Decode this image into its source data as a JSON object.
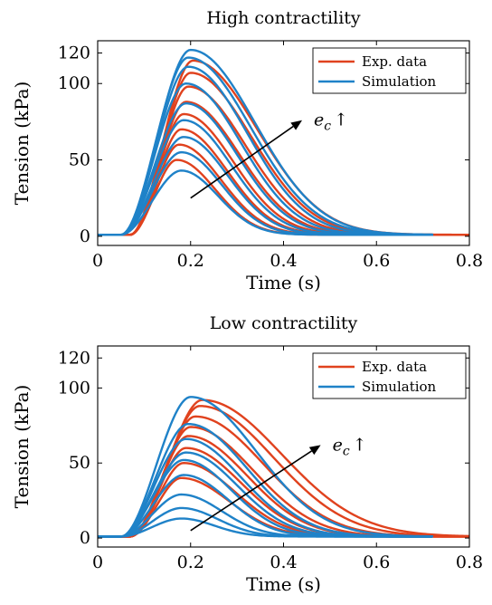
{
  "chart_data": [
    {
      "type": "line",
      "title": "High contractility",
      "xlabel": "Time (s)",
      "ylabel": "Tension (kPa)",
      "xlim": [
        0,
        0.8
      ],
      "ylim": [
        -6,
        128
      ],
      "x_ticks": [
        0,
        0.2,
        0.4,
        0.6,
        0.8
      ],
      "x_tick_labels": [
        "0",
        "0.2",
        "0.4",
        "0.6",
        "0.8"
      ],
      "y_ticks": [
        0,
        50,
        100,
        120
      ],
      "y_tick_labels": [
        "0",
        "50",
        "100",
        "120"
      ],
      "grid": false,
      "legend_position": "top-right",
      "legend": [
        {
          "label": "Exp. data",
          "color": "#e0421e"
        },
        {
          "label": "Simulation",
          "color": "#1f82c8"
        }
      ],
      "annotation": {
        "text": "e",
        "subscript": "c",
        "suffix": "↑",
        "from": [
          0.2,
          25
        ],
        "to": [
          0.44,
          76
        ]
      },
      "series": [
        {
          "group": "Exp. data",
          "color": "#e0421e",
          "x_end": 0.8,
          "onset": 0.07,
          "peak_x": 0.17,
          "peak": 50,
          "fall": 0.105,
          "baseline": 1
        },
        {
          "group": "Exp. data",
          "color": "#e0421e",
          "x_end": 0.8,
          "onset": 0.07,
          "peak_x": 0.175,
          "peak": 60,
          "fall": 0.115,
          "baseline": 1
        },
        {
          "group": "Exp. data",
          "color": "#e0421e",
          "x_end": 0.8,
          "onset": 0.07,
          "peak_x": 0.18,
          "peak": 70,
          "fall": 0.125,
          "baseline": 1
        },
        {
          "group": "Exp. data",
          "color": "#e0421e",
          "x_end": 0.8,
          "onset": 0.07,
          "peak_x": 0.185,
          "peak": 80,
          "fall": 0.135,
          "baseline": 1
        },
        {
          "group": "Exp. data",
          "color": "#e0421e",
          "x_end": 0.8,
          "onset": 0.07,
          "peak_x": 0.19,
          "peak": 88,
          "fall": 0.145,
          "baseline": 1
        },
        {
          "group": "Exp. data",
          "color": "#e0421e",
          "x_end": 0.8,
          "onset": 0.07,
          "peak_x": 0.195,
          "peak": 98,
          "fall": 0.155,
          "baseline": 1
        },
        {
          "group": "Exp. data",
          "color": "#e0421e",
          "x_end": 0.8,
          "onset": 0.07,
          "peak_x": 0.2,
          "peak": 107,
          "fall": 0.165,
          "baseline": 1
        },
        {
          "group": "Exp. data",
          "color": "#e0421e",
          "x_end": 0.8,
          "onset": 0.07,
          "peak_x": 0.205,
          "peak": 115,
          "fall": 0.175,
          "baseline": 1
        },
        {
          "group": "Simulation",
          "color": "#1f82c8",
          "x_end": 0.72,
          "onset": 0.05,
          "peak_x": 0.18,
          "peak": 43,
          "fall": 0.1,
          "baseline": 1
        },
        {
          "group": "Simulation",
          "color": "#1f82c8",
          "x_end": 0.72,
          "onset": 0.05,
          "peak_x": 0.18,
          "peak": 55,
          "fall": 0.11,
          "baseline": 1
        },
        {
          "group": "Simulation",
          "color": "#1f82c8",
          "x_end": 0.72,
          "onset": 0.05,
          "peak_x": 0.185,
          "peak": 65,
          "fall": 0.12,
          "baseline": 1
        },
        {
          "group": "Simulation",
          "color": "#1f82c8",
          "x_end": 0.72,
          "onset": 0.05,
          "peak_x": 0.185,
          "peak": 76,
          "fall": 0.13,
          "baseline": 1
        },
        {
          "group": "Simulation",
          "color": "#1f82c8",
          "x_end": 0.72,
          "onset": 0.05,
          "peak_x": 0.19,
          "peak": 87,
          "fall": 0.14,
          "baseline": 1
        },
        {
          "group": "Simulation",
          "color": "#1f82c8",
          "x_end": 0.72,
          "onset": 0.05,
          "peak_x": 0.19,
          "peak": 100,
          "fall": 0.15,
          "baseline": 1
        },
        {
          "group": "Simulation",
          "color": "#1f82c8",
          "x_end": 0.72,
          "onset": 0.05,
          "peak_x": 0.195,
          "peak": 111,
          "fall": 0.16,
          "baseline": 1
        },
        {
          "group": "Simulation",
          "color": "#1f82c8",
          "x_end": 0.72,
          "onset": 0.05,
          "peak_x": 0.195,
          "peak": 117,
          "fall": 0.17,
          "baseline": 1
        },
        {
          "group": "Simulation",
          "color": "#1f82c8",
          "x_end": 0.72,
          "onset": 0.05,
          "peak_x": 0.2,
          "peak": 122,
          "fall": 0.175,
          "baseline": 1
        }
      ]
    },
    {
      "type": "line",
      "title": "Low contractility",
      "xlabel": "Time (s)",
      "ylabel": "Tension (kPa)",
      "xlim": [
        0,
        0.8
      ],
      "ylim": [
        -6,
        128
      ],
      "x_ticks": [
        0,
        0.2,
        0.4,
        0.6,
        0.8
      ],
      "x_tick_labels": [
        "0",
        "0.2",
        "0.4",
        "0.6",
        "0.8"
      ],
      "y_ticks": [
        0,
        50,
        100,
        120
      ],
      "y_tick_labels": [
        "0",
        "50",
        "100",
        "120"
      ],
      "grid": false,
      "legend_position": "top-right",
      "legend": [
        {
          "label": "Exp. data",
          "color": "#e0421e"
        },
        {
          "label": "Simulation",
          "color": "#1f82c8"
        }
      ],
      "annotation": {
        "text": "e",
        "subscript": "c",
        "suffix": "↑",
        "from": [
          0.2,
          5
        ],
        "to": [
          0.48,
          62
        ]
      },
      "series": [
        {
          "group": "Exp. data",
          "color": "#e0421e",
          "x_end": 0.8,
          "onset": 0.07,
          "peak_x": 0.18,
          "peak": 40,
          "fall": 0.13,
          "baseline": 1
        },
        {
          "group": "Exp. data",
          "color": "#e0421e",
          "x_end": 0.8,
          "onset": 0.07,
          "peak_x": 0.185,
          "peak": 50,
          "fall": 0.14,
          "baseline": 1
        },
        {
          "group": "Exp. data",
          "color": "#e0421e",
          "x_end": 0.8,
          "onset": 0.07,
          "peak_x": 0.19,
          "peak": 60,
          "fall": 0.15,
          "baseline": 1
        },
        {
          "group": "Exp. data",
          "color": "#e0421e",
          "x_end": 0.8,
          "onset": 0.07,
          "peak_x": 0.195,
          "peak": 68,
          "fall": 0.16,
          "baseline": 1
        },
        {
          "group": "Exp. data",
          "color": "#e0421e",
          "x_end": 0.8,
          "onset": 0.07,
          "peak_x": 0.2,
          "peak": 74,
          "fall": 0.17,
          "baseline": 1
        },
        {
          "group": "Exp. data",
          "color": "#e0421e",
          "x_end": 0.8,
          "onset": 0.07,
          "peak_x": 0.21,
          "peak": 81,
          "fall": 0.185,
          "baseline": 1
        },
        {
          "group": "Exp. data",
          "color": "#e0421e",
          "x_end": 0.8,
          "onset": 0.07,
          "peak_x": 0.22,
          "peak": 88,
          "fall": 0.2,
          "baseline": 1
        },
        {
          "group": "Exp. data",
          "color": "#e0421e",
          "x_end": 0.8,
          "onset": 0.07,
          "peak_x": 0.225,
          "peak": 92,
          "fall": 0.215,
          "baseline": 1
        },
        {
          "group": "Simulation",
          "color": "#1f82c8",
          "x_end": 0.72,
          "onset": 0.05,
          "peak_x": 0.18,
          "peak": 13,
          "fall": 0.09,
          "baseline": 1
        },
        {
          "group": "Simulation",
          "color": "#1f82c8",
          "x_end": 0.72,
          "onset": 0.05,
          "peak_x": 0.18,
          "peak": 20,
          "fall": 0.1,
          "baseline": 1
        },
        {
          "group": "Simulation",
          "color": "#1f82c8",
          "x_end": 0.72,
          "onset": 0.05,
          "peak_x": 0.18,
          "peak": 29,
          "fall": 0.11,
          "baseline": 1
        },
        {
          "group": "Simulation",
          "color": "#1f82c8",
          "x_end": 0.72,
          "onset": 0.05,
          "peak_x": 0.185,
          "peak": 42,
          "fall": 0.12,
          "baseline": 1
        },
        {
          "group": "Simulation",
          "color": "#1f82c8",
          "x_end": 0.72,
          "onset": 0.05,
          "peak_x": 0.185,
          "peak": 52,
          "fall": 0.13,
          "baseline": 1
        },
        {
          "group": "Simulation",
          "color": "#1f82c8",
          "x_end": 0.72,
          "onset": 0.05,
          "peak_x": 0.19,
          "peak": 57,
          "fall": 0.14,
          "baseline": 1
        },
        {
          "group": "Simulation",
          "color": "#1f82c8",
          "x_end": 0.72,
          "onset": 0.05,
          "peak_x": 0.19,
          "peak": 66,
          "fall": 0.15,
          "baseline": 1
        },
        {
          "group": "Simulation",
          "color": "#1f82c8",
          "x_end": 0.72,
          "onset": 0.05,
          "peak_x": 0.195,
          "peak": 76,
          "fall": 0.16,
          "baseline": 1
        },
        {
          "group": "Simulation",
          "color": "#1f82c8",
          "x_end": 0.72,
          "onset": 0.05,
          "peak_x": 0.2,
          "peak": 94,
          "fall": 0.18,
          "baseline": 1
        }
      ]
    }
  ]
}
